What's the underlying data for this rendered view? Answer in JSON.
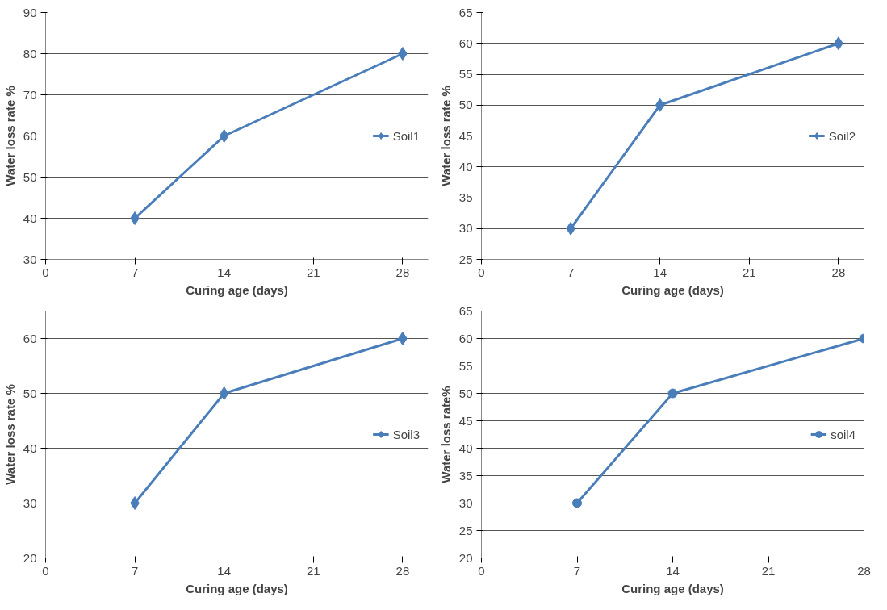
{
  "chart_data": [
    {
      "type": "line",
      "xlabel": "Curing age (days)",
      "ylabel": "Water loss rate %",
      "x": [
        7,
        14,
        28
      ],
      "xlim": [
        0,
        30
      ],
      "xticks": [
        0,
        7,
        14,
        21,
        28
      ],
      "ylim": [
        30,
        90
      ],
      "yticks": [
        30,
        40,
        50,
        60,
        70,
        80,
        90
      ],
      "grid": "y",
      "legend": "right",
      "marker": "diamond",
      "series": [
        {
          "name": "Soil1",
          "color": "#4a7ebb",
          "values": [
            40,
            60,
            80
          ]
        }
      ]
    },
    {
      "type": "line",
      "xlabel": "Curing age (days)",
      "ylabel": "Water loss rate %",
      "x": [
        7,
        14,
        28
      ],
      "xlim": [
        0,
        30
      ],
      "xticks": [
        0,
        7,
        14,
        21,
        28
      ],
      "ylim": [
        25,
        65
      ],
      "yticks": [
        25,
        30,
        35,
        40,
        45,
        50,
        55,
        60,
        65
      ],
      "grid": "y",
      "legend": "right",
      "marker": "diamond",
      "series": [
        {
          "name": "Soil2",
          "color": "#4a7ebb",
          "values": [
            30,
            50,
            60
          ]
        }
      ]
    },
    {
      "type": "line",
      "xlabel": "Curing age (days)",
      "ylabel": "Water loss rate %",
      "x": [
        7,
        14,
        28
      ],
      "xlim": [
        0,
        30
      ],
      "xticks": [
        0,
        7,
        14,
        21,
        28
      ],
      "ylim": [
        20,
        65
      ],
      "yticks": [
        20,
        30,
        40,
        50,
        60
      ],
      "grid": "y",
      "legend": "right",
      "marker": "diamond",
      "series": [
        {
          "name": "Soil3",
          "color": "#4a7ebb",
          "values": [
            30,
            50,
            60
          ]
        }
      ]
    },
    {
      "type": "line",
      "xlabel": "Curing age (days)",
      "ylabel": "Water loss rate%",
      "x": [
        7,
        14,
        28
      ],
      "xlim": [
        0,
        28
      ],
      "xticks": [
        0,
        7,
        14,
        21,
        28
      ],
      "ylim": [
        20,
        65
      ],
      "yticks": [
        20,
        25,
        30,
        35,
        40,
        45,
        50,
        55,
        60,
        65
      ],
      "grid": "y",
      "legend": "right",
      "marker": "circle",
      "series": [
        {
          "name": "soil4",
          "color": "#4a7ebb",
          "values": [
            30,
            50,
            60
          ]
        }
      ]
    }
  ]
}
